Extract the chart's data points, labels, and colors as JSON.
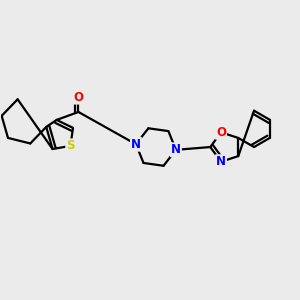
{
  "background_color": "#ebebeb",
  "bond_color": "#000000",
  "N_color": "#0000ff",
  "O_color": "#ff0000",
  "S_color": "#cccc00",
  "line_width": 1.6,
  "figsize": [
    3.0,
    3.0
  ],
  "dpi": 100,
  "xlim": [
    0.0,
    1.0
  ],
  "ylim": [
    0.2,
    0.85
  ]
}
